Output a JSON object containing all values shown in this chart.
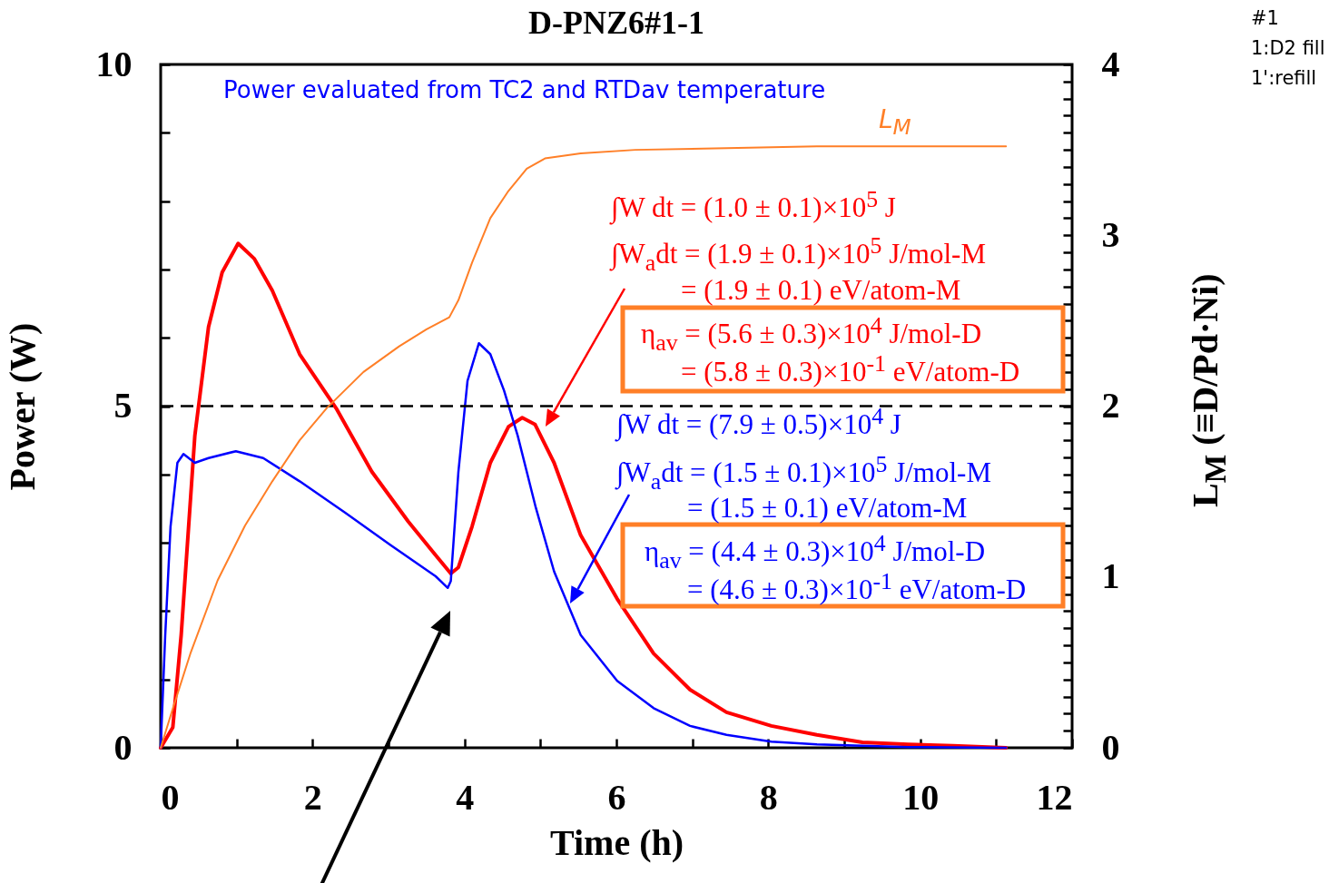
{
  "chart_data": {
    "type": "line",
    "title": "D-PNZ6#1-1",
    "xlabel": "Time  (h)",
    "ylabel": "Power  (W)",
    "y2label": "L$_{M}$  (≡D/Pd·Ni)",
    "xlim": [
      0,
      12
    ],
    "ylim": [
      0,
      10
    ],
    "y2lim": [
      0,
      4
    ],
    "xticks": [
      0,
      {
        "value": 1,
        "label": null
      },
      2,
      {
        "value": 3,
        "label": null
      },
      4,
      {
        "value": 5,
        "label": null
      },
      6,
      {
        "value": 7,
        "label": null
      },
      8,
      {
        "value": 9,
        "label": null
      },
      10,
      {
        "value": 11,
        "label": null
      },
      12
    ],
    "yticks": [
      0,
      {
        "value": 1,
        "label": null
      },
      {
        "value": 2,
        "label": null
      },
      {
        "value": 3,
        "label": null
      },
      {
        "value": 4,
        "label": null
      },
      5,
      {
        "value": 6,
        "label": null
      },
      {
        "value": 7,
        "label": null
      },
      {
        "value": 8,
        "label": null
      },
      {
        "value": 9,
        "label": null
      },
      10
    ],
    "y2ticks": [
      0,
      {
        "value": 0.1,
        "label": null
      },
      {
        "value": 0.2,
        "label": null
      },
      {
        "value": 0.3,
        "label": null
      },
      {
        "value": 0.4,
        "label": null
      },
      {
        "value": 0.5,
        "label": null
      },
      {
        "value": 0.6,
        "label": null
      },
      {
        "value": 0.7,
        "label": null
      },
      {
        "value": 0.8,
        "label": null
      },
      {
        "value": 0.9,
        "label": null
      },
      1,
      {
        "value": 1.1,
        "label": null
      },
      {
        "value": 1.2,
        "label": null
      },
      {
        "value": 1.3,
        "label": null
      },
      {
        "value": 1.4,
        "label": null
      },
      {
        "value": 1.5,
        "label": null
      },
      {
        "value": 1.6,
        "label": null
      },
      {
        "value": 1.7,
        "label": null
      },
      {
        "value": 1.8,
        "label": null
      },
      {
        "value": 1.9,
        "label": null
      },
      2,
      {
        "value": 2.1,
        "label": null
      },
      {
        "value": 2.2,
        "label": null
      },
      {
        "value": 2.3,
        "label": null
      },
      {
        "value": 2.4,
        "label": null
      },
      {
        "value": 2.5,
        "label": null
      },
      {
        "value": 2.6,
        "label": null
      },
      {
        "value": 2.7,
        "label": null
      },
      {
        "value": 2.8,
        "label": null
      },
      {
        "value": 2.9,
        "label": null
      },
      3,
      {
        "value": 3.1,
        "label": null
      },
      {
        "value": 3.2,
        "label": null
      },
      {
        "value": 3.3,
        "label": null
      },
      {
        "value": 3.4,
        "label": null
      },
      {
        "value": 3.5,
        "label": null
      },
      {
        "value": 3.6,
        "label": null
      },
      {
        "value": 3.7,
        "label": null
      },
      {
        "value": 3.8,
        "label": null
      },
      {
        "value": 3.9,
        "label": null
      },
      4
    ],
    "grid": false,
    "marker": "none",
    "series": [
      {
        "color": "#ff0000",
        "x": [
          0,
          0.16,
          0.27,
          0.45,
          0.63,
          0.81,
          1.02,
          1.23,
          1.47,
          1.83,
          2.31,
          2.78,
          3.26,
          3.62,
          3.82,
          3.92,
          4.1,
          4.34,
          4.58,
          4.76,
          4.93,
          5.18,
          5.53,
          6.01,
          6.49,
          6.97,
          7.45,
          8.04,
          8.64,
          9.24,
          9.84,
          10.43,
          11.13
        ],
        "values": [
          0,
          0.3,
          1.65,
          4.57,
          6.16,
          6.96,
          7.38,
          7.16,
          6.69,
          5.76,
          4.97,
          4.04,
          3.31,
          2.82,
          2.55,
          2.64,
          3.24,
          4.17,
          4.7,
          4.83,
          4.73,
          4.17,
          3.11,
          2.18,
          1.38,
          0.85,
          0.52,
          0.32,
          0.19,
          0.08,
          0.05,
          0.03,
          0
        ]
      },
      {
        "color": "#0000ff",
        "x": [
          0,
          0.06,
          0.13,
          0.22,
          0.3,
          0.45,
          0.63,
          0.99,
          1.35,
          1.83,
          2.43,
          3.02,
          3.62,
          3.78,
          3.82,
          3.92,
          4.04,
          4.19,
          4.34,
          4.52,
          4.7,
          4.94,
          5.18,
          5.53,
          6.01,
          6.49,
          6.97,
          7.45,
          8.04,
          8.64,
          9.84,
          11.13
        ],
        "values": [
          0,
          1.65,
          3.24,
          4.17,
          4.3,
          4.17,
          4.24,
          4.34,
          4.24,
          3.9,
          3.44,
          2.97,
          2.51,
          2.34,
          2.44,
          4.04,
          5.37,
          5.92,
          5.76,
          5.23,
          4.57,
          3.51,
          2.58,
          1.65,
          0.98,
          0.58,
          0.32,
          0.19,
          0.09,
          0.05,
          0.01,
          0
        ]
      },
      {
        "name": "L$_{M}$",
        "color": "#ff7f27",
        "axis": "y2",
        "x": [
          0,
          0.16,
          0.39,
          0.75,
          1.11,
          1.47,
          1.83,
          2.19,
          2.67,
          3.14,
          3.5,
          3.8,
          3.92,
          4.1,
          4.34,
          4.58,
          4.82,
          5.06,
          5.53,
          6.25,
          7.45,
          8.64,
          9.84,
          11.13
        ],
        "values": [
          0,
          0.23,
          0.55,
          0.98,
          1.3,
          1.56,
          1.8,
          1.99,
          2.2,
          2.35,
          2.45,
          2.52,
          2.62,
          2.84,
          3.1,
          3.26,
          3.39,
          3.45,
          3.48,
          3.5,
          3.51,
          3.52,
          3.52,
          3.52
        ]
      }
    ],
    "ref_lines": [
      {
        "axis": "y",
        "value": 5,
        "color": "#000000",
        "line_style": "dashed"
      }
    ],
    "annotations": [
      "Power evaluated from TC2 and RTDav temperature",
      "∫W dt = (1.0 ± 0.1)×10$^{5}$ J",
      "∫W$_{a}$dt = (1.9 ± 0.1)×10$^{5}$ J/mol-M",
      "= (1.9 ± 0.1) eV/atom-M",
      "η$_{av}$ = (5.6 ± 0.3)×10$^{4}$ J/mol-D",
      "= (5.8 ± 0.3)×10$^{-1}$ eV/atom-D",
      "∫W dt = (7.9 ± 0.5)×10$^{4}$ J",
      "∫W$_{a}$dt = (1.5 ± 0.1)×10$^{5}$ J/mol-M",
      "= (1.5 ± 0.1) eV/atom-M",
      "η$_{av}$ = (4.4 ± 0.3)×10$^{4}$ J/mol-D",
      "= (4.6 ± 0.3)×10$^{-1}$ eV/atom-D",
      "#1",
      "1:D2 fill",
      "1':refill"
    ]
  }
}
